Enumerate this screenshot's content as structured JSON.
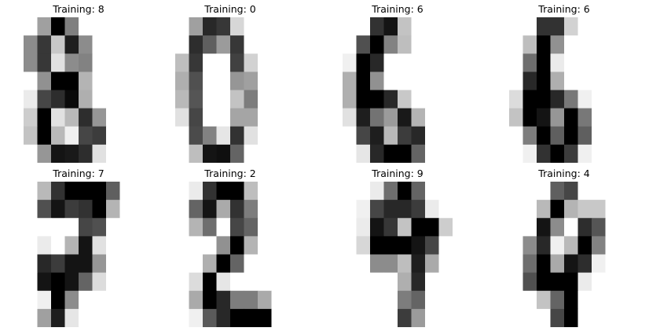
{
  "figure": {
    "panels": [
      {
        "title": "Training: 8",
        "pixels": [
          [
            255,
            160,
            0,
            128,
            255,
            255,
            255,
            255
          ],
          [
            140,
            55,
            200,
            30,
            140,
            255,
            255,
            255
          ],
          [
            140,
            55,
            225,
            140,
            130,
            255,
            255,
            255
          ],
          [
            255,
            145,
            0,
            0,
            180,
            255,
            255,
            255
          ],
          [
            235,
            70,
            45,
            10,
            175,
            255,
            255,
            255
          ],
          [
            205,
            0,
            225,
            185,
            45,
            150,
            255,
            255
          ],
          [
            195,
            0,
            185,
            240,
            70,
            60,
            255,
            255
          ],
          [
            255,
            150,
            20,
            25,
            45,
            225,
            255,
            255
          ]
        ]
      },
      {
        "title": "Training: 0",
        "pixels": [
          [
            255,
            160,
            40,
            55,
            215,
            255,
            255,
            255
          ],
          [
            255,
            45,
            95,
            155,
            55,
            255,
            255,
            255
          ],
          [
            190,
            55,
            255,
            255,
            65,
            210,
            255,
            255
          ],
          [
            175,
            80,
            255,
            255,
            150,
            160,
            255,
            255
          ],
          [
            185,
            85,
            255,
            255,
            195,
            125,
            255,
            255
          ],
          [
            225,
            70,
            255,
            255,
            165,
            165,
            255,
            255
          ],
          [
            255,
            75,
            130,
            230,
            50,
            225,
            255,
            255
          ],
          [
            255,
            190,
            20,
            15,
            100,
            255,
            255,
            255
          ]
        ]
      },
      {
        "title": "Training: 6",
        "pixels": [
          [
            255,
            255,
            50,
            20,
            195,
            255,
            255,
            255
          ],
          [
            255,
            80,
            0,
            130,
            190,
            255,
            255,
            255
          ],
          [
            240,
            0,
            40,
            255,
            255,
            255,
            255,
            255
          ],
          [
            175,
            0,
            145,
            255,
            255,
            255,
            255,
            255
          ],
          [
            175,
            0,
            0,
            40,
            200,
            255,
            255,
            255
          ],
          [
            225,
            30,
            115,
            155,
            25,
            180,
            255,
            255
          ],
          [
            255,
            70,
            30,
            185,
            60,
            40,
            255,
            255
          ],
          [
            255,
            230,
            40,
            0,
            0,
            100,
            255,
            255
          ]
        ]
      },
      {
        "title": "Training: 6",
        "pixels": [
          [
            255,
            255,
            50,
            50,
            210,
            255,
            255,
            255
          ],
          [
            255,
            190,
            0,
            145,
            255,
            255,
            255,
            255
          ],
          [
            255,
            110,
            0,
            235,
            255,
            255,
            255,
            255
          ],
          [
            255,
            40,
            0,
            175,
            255,
            255,
            255,
            255
          ],
          [
            220,
            0,
            0,
            40,
            120,
            240,
            255,
            255
          ],
          [
            195,
            0,
            20,
            150,
            0,
            120,
            255,
            255
          ],
          [
            255,
            125,
            0,
            95,
            0,
            95,
            255,
            255
          ],
          [
            255,
            240,
            50,
            0,
            60,
            240,
            255,
            255
          ]
        ]
      },
      {
        "title": "Training: 7",
        "pixels": [
          [
            255,
            185,
            50,
            0,
            0,
            0,
            95,
            255
          ],
          [
            255,
            80,
            20,
            60,
            50,
            0,
            180,
            255
          ],
          [
            255,
            255,
            255,
            255,
            70,
            80,
            255,
            255
          ],
          [
            255,
            235,
            255,
            180,
            20,
            225,
            255,
            255
          ],
          [
            255,
            40,
            60,
            20,
            20,
            150,
            255,
            255
          ],
          [
            255,
            20,
            0,
            20,
            100,
            220,
            255,
            255
          ],
          [
            255,
            240,
            0,
            140,
            255,
            255,
            255,
            255
          ],
          [
            255,
            160,
            30,
            230,
            255,
            255,
            255,
            255
          ]
        ]
      },
      {
        "title": "Training: 2",
        "pixels": [
          [
            255,
            235,
            50,
            0,
            0,
            190,
            255,
            255
          ],
          [
            255,
            100,
            20,
            170,
            50,
            125,
            255,
            255
          ],
          [
            255,
            180,
            110,
            255,
            70,
            100,
            255,
            255
          ],
          [
            255,
            255,
            255,
            145,
            0,
            180,
            255,
            255
          ],
          [
            255,
            255,
            175,
            0,
            100,
            255,
            255,
            255
          ],
          [
            255,
            220,
            0,
            230,
            255,
            255,
            255,
            255
          ],
          [
            255,
            170,
            0,
            40,
            125,
            125,
            170,
            255
          ],
          [
            255,
            240,
            90,
            40,
            0,
            0,
            0,
            255
          ]
        ]
      },
      {
        "title": "Training: 9",
        "pixels": [
          [
            255,
            255,
            235,
            110,
            0,
            100,
            255,
            255
          ],
          [
            255,
            240,
            70,
            40,
            40,
            60,
            235,
            255
          ],
          [
            255,
            235,
            20,
            55,
            195,
            0,
            0,
            205
          ],
          [
            255,
            215,
            0,
            0,
            0,
            20,
            70,
            255
          ],
          [
            255,
            255,
            140,
            140,
            190,
            30,
            170,
            255
          ],
          [
            255,
            255,
            255,
            255,
            175,
            40,
            255,
            255
          ],
          [
            255,
            255,
            255,
            255,
            125,
            100,
            255,
            255
          ],
          [
            255,
            255,
            255,
            255,
            60,
            155,
            255,
            255
          ]
        ]
      },
      {
        "title": "Training: 4",
        "pixels": [
          [
            255,
            255,
            255,
            95,
            70,
            255,
            255,
            255
          ],
          [
            255,
            255,
            185,
            0,
            180,
            200,
            200,
            255
          ],
          [
            255,
            255,
            20,
            140,
            255,
            45,
            85,
            255
          ],
          [
            255,
            140,
            40,
            240,
            185,
            0,
            130,
            255
          ],
          [
            255,
            110,
            0,
            170,
            20,
            45,
            240,
            255
          ],
          [
            255,
            80,
            0,
            0,
            0,
            235,
            255,
            255
          ],
          [
            255,
            255,
            195,
            100,
            0,
            255,
            255,
            255
          ],
          [
            255,
            255,
            255,
            70,
            0,
            255,
            255,
            255
          ]
        ]
      }
    ]
  }
}
